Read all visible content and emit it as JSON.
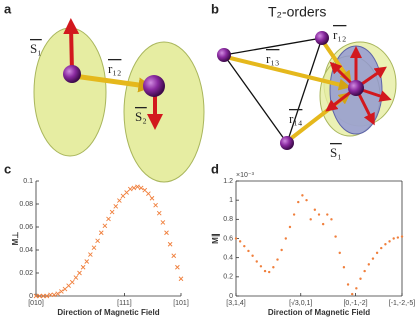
{
  "panels": {
    "a": {
      "label": "a",
      "spin_1": "S₁",
      "bond_12": "r₁₂",
      "spin_2": "S₂"
    },
    "b": {
      "label": "b",
      "title": "T₂-orders",
      "bond_12": "r₁₂",
      "bond_13": "r₁₃",
      "bond_14": "r₁₄",
      "spin_1": "S₁"
    },
    "c": {
      "label": "c"
    },
    "d": {
      "label": "d"
    }
  },
  "chart_data": [
    {
      "type": "scatter",
      "marker": "x",
      "box": false,
      "color": "#f07f3c",
      "x_label": "Direction of Magnetic Field",
      "y_label": "M⊥",
      "x": [
        0,
        0.025,
        0.05,
        0.075,
        0.1,
        0.125,
        0.15,
        0.175,
        0.2,
        0.225,
        0.25,
        0.275,
        0.3,
        0.325,
        0.35,
        0.375,
        0.4,
        0.425,
        0.45,
        0.475,
        0.5,
        0.525,
        0.55,
        0.575,
        0.6,
        0.625,
        0.65,
        0.675,
        0.7,
        0.725,
        0.75,
        0.775,
        0.8,
        0.825,
        0.85,
        0.875,
        0.9,
        0.925,
        0.95,
        0.975,
        1
      ],
      "values": [
        0,
        0,
        0,
        0,
        0.001,
        0.001,
        0.002,
        0.004,
        0.006,
        0.009,
        0.012,
        0.016,
        0.02,
        0.025,
        0.03,
        0.036,
        0.042,
        0.048,
        0.055,
        0.061,
        0.067,
        0.073,
        0.078,
        0.083,
        0.087,
        0.09,
        0.093,
        0.094,
        0.095,
        0.094,
        0.092,
        0.089,
        0.085,
        0.079,
        0.072,
        0.064,
        0.055,
        0.045,
        0.035,
        0.025,
        0.015
      ],
      "xlim": [
        0,
        1
      ],
      "xticks": [
        {
          "value": 0,
          "label": "[010]"
        },
        {
          "value": 0.61,
          "label": "[111]"
        },
        {
          "value": 1,
          "label": "[101]"
        }
      ],
      "ylim": [
        0,
        0.1
      ],
      "yticks": [
        0,
        0.02,
        0.04,
        0.06,
        0.08,
        0.1
      ]
    },
    {
      "type": "scatter",
      "marker": "o",
      "box": true,
      "color": "#f07f3c",
      "x_label": "Direction of Magnetic Field",
      "y_label": "M∥",
      "y_scale_label": "×10⁻³",
      "x": [
        0,
        0.025,
        0.05,
        0.075,
        0.1,
        0.125,
        0.15,
        0.175,
        0.2,
        0.225,
        0.25,
        0.275,
        0.3,
        0.325,
        0.35,
        0.375,
        0.4,
        0.425,
        0.45,
        0.475,
        0.5,
        0.525,
        0.55,
        0.575,
        0.6,
        0.625,
        0.65,
        0.675,
        0.7,
        0.725,
        0.75,
        0.775,
        0.8,
        0.825,
        0.85,
        0.875,
        0.9,
        0.925,
        0.95,
        0.975,
        1
      ],
      "values": [
        0.6,
        0.57,
        0.52,
        0.47,
        0.42,
        0.36,
        0.31,
        0.26,
        0.25,
        0.3,
        0.38,
        0.48,
        0.6,
        0.72,
        0.85,
        0.98,
        1.05,
        1.0,
        0.8,
        0.9,
        0.85,
        0.75,
        0.85,
        0.8,
        0.62,
        0.45,
        0.3,
        0.12,
        0.02,
        0.08,
        0.18,
        0.26,
        0.33,
        0.39,
        0.45,
        0.5,
        0.54,
        0.57,
        0.6,
        0.61,
        0.62
      ],
      "xlim": [
        0,
        1
      ],
      "xticks": [
        {
          "value": 0,
          "label": "[3,1,4]"
        },
        {
          "value": 0.39,
          "label": "[√3,0,1]"
        },
        {
          "value": 0.72,
          "label": "[0,-1,-2]"
        },
        {
          "value": 1,
          "label": "[-1,-2,-5]"
        }
      ],
      "ylim": [
        0,
        1.2
      ],
      "yticks": [
        0,
        0.2,
        0.4,
        0.6,
        0.8,
        1,
        1.2
      ]
    }
  ]
}
